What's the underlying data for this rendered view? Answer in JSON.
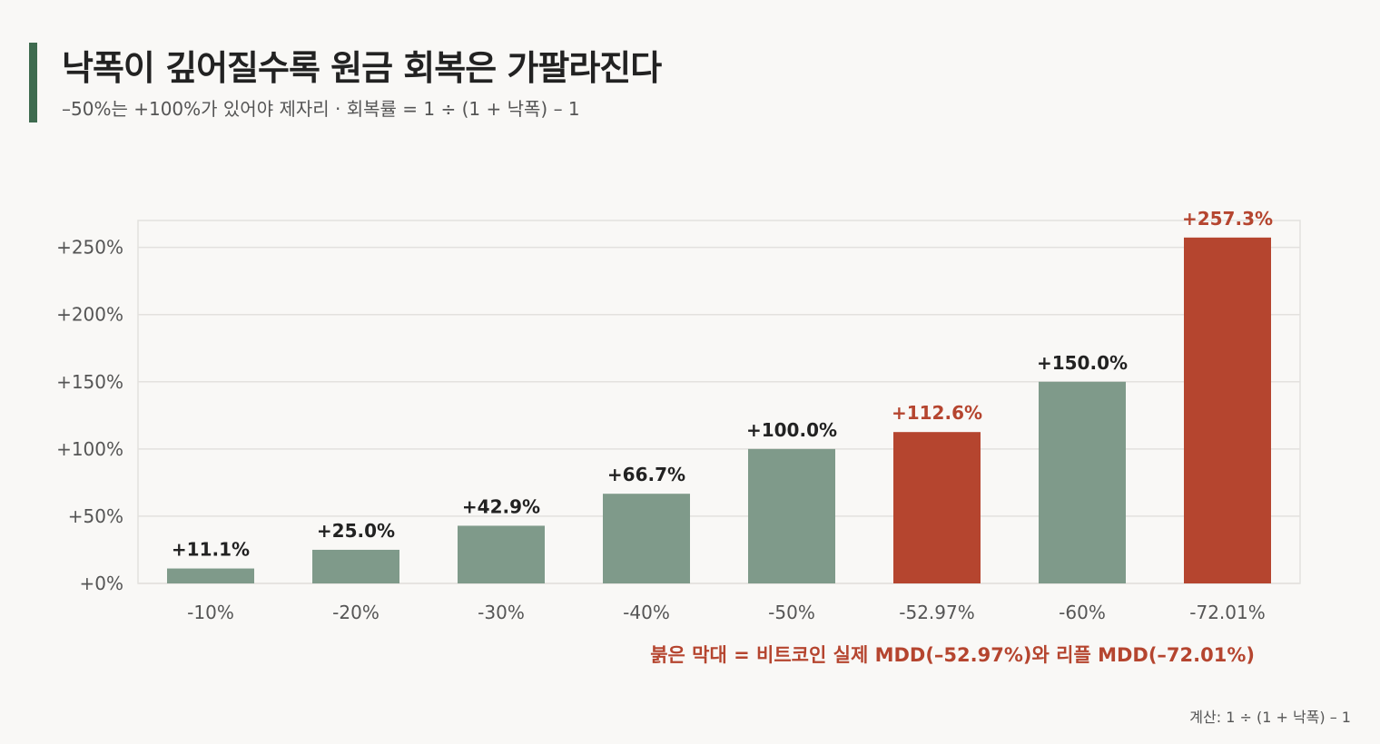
{
  "title": "낙폭이 깊어질수록 원금 회복은 가팔라진다",
  "subtitle": "–50%는 +100%가 있어야 제자리 · 회복률 = 1 ÷ (1 + 낙폭) – 1",
  "footnote": "계산: 1 ÷ (1 + 낙폭) – 1",
  "colors": {
    "normal_bar": "#7f9a8a",
    "highlight_bar": "#b5452f",
    "accent": "#3f6b4f",
    "grid": "#e3e1de",
    "axis_text": "#555555",
    "label_text": "#222222"
  },
  "chart_data": {
    "type": "bar",
    "categories": [
      "-10%",
      "-20%",
      "-30%",
      "-40%",
      "-50%",
      "-52.97%",
      "-60%",
      "-72.01%"
    ],
    "values": [
      11.1,
      25.0,
      42.9,
      66.7,
      100.0,
      112.6,
      150.0,
      257.3
    ],
    "value_labels": [
      "+11.1%",
      "+25.0%",
      "+42.9%",
      "+66.7%",
      "+100.0%",
      "+112.6%",
      "+150.0%",
      "+257.3%"
    ],
    "highlighted": [
      false,
      false,
      false,
      false,
      false,
      true,
      false,
      true
    ],
    "yticks": [
      0,
      50,
      100,
      150,
      200,
      250
    ],
    "ytick_labels": [
      "+0%",
      "+50%",
      "+100%",
      "+150%",
      "+200%",
      "+250%"
    ],
    "ylim": [
      0,
      270
    ],
    "grid": true,
    "annotation": "붉은 막대 = 비트코인 실제 MDD(–52.97%)와 리플 MDD(–72.01%)"
  }
}
